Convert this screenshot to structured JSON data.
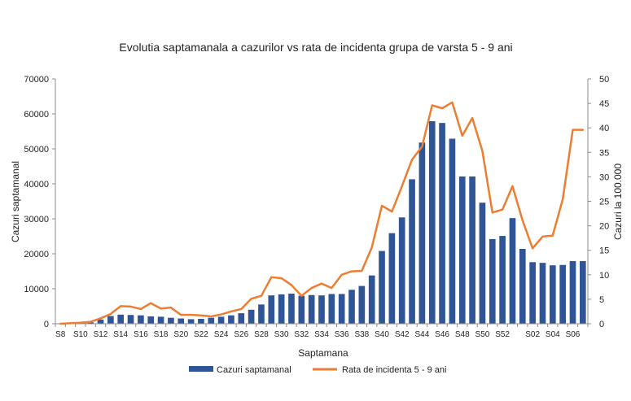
{
  "chart_data": {
    "type": "bar+line",
    "title": "Evolutia saptamanala a cazurilor vs rata de incidenta grupa de varsta 5 - 9 ani",
    "xlabel": "Saptamana",
    "ylabel_left": "Cazuri saptamanal",
    "ylabel_right": "Cazuri la 100.000",
    "ylim_left": [
      0,
      70000
    ],
    "ylim_right": [
      0,
      50
    ],
    "yticks_left": [
      "0",
      "10000",
      "20000",
      "30000",
      "40000",
      "50000",
      "60000",
      "70000"
    ],
    "yticks_right": [
      "0",
      "5",
      "10",
      "15",
      "20",
      "25",
      "30",
      "35",
      "40",
      "45",
      "50"
    ],
    "categories": [
      "S8",
      "S9",
      "S10",
      "S11",
      "S12",
      "S13",
      "S14",
      "S15",
      "S16",
      "S17",
      "S18",
      "S19",
      "S20",
      "S21",
      "S22",
      "S23",
      "S24",
      "S25",
      "S26",
      "S27",
      "S28",
      "S29",
      "S30",
      "S31",
      "S32",
      "S33",
      "S34",
      "S35",
      "S36",
      "S37",
      "S38",
      "S39",
      "S40",
      "S41",
      "S42",
      "S43",
      "S44",
      "S45",
      "S46",
      "S47",
      "S48",
      "S49",
      "S50",
      "S51",
      "S52",
      "S53",
      "S01",
      "S02",
      "S03",
      "S04",
      "S05",
      "S06",
      "S07"
    ],
    "x_tick_labels": [
      "S8",
      "S10",
      "S12",
      "S14",
      "S16",
      "S18",
      "S20",
      "S22",
      "S24",
      "S26",
      "S28",
      "S30",
      "S32",
      "S34",
      "S36",
      "S38",
      "S40",
      "S42",
      "S44",
      "S46",
      "S48",
      "S50",
      "S52",
      "S02",
      "S04",
      "S06"
    ],
    "series": [
      {
        "name": "Cazuri saptamanal",
        "type": "bar",
        "axis": "left",
        "color": "#2F5597",
        "values": [
          50,
          100,
          200,
          400,
          1200,
          2200,
          2600,
          2500,
          2400,
          2100,
          2000,
          1700,
          1500,
          1300,
          1400,
          1700,
          2000,
          2400,
          3000,
          4000,
          5500,
          8100,
          8400,
          8600,
          8000,
          8200,
          8100,
          8500,
          8500,
          9700,
          10800,
          13800,
          20800,
          25900,
          30400,
          41300,
          51800,
          57900,
          57400,
          52900,
          42100,
          42100,
          34600,
          24200,
          25100,
          30200,
          21400,
          17600,
          17400,
          16700,
          16800,
          17900,
          17900
        ]
      },
      {
        "name": "Rata de incidenta 5 - 9 ani",
        "type": "line",
        "axis": "right",
        "color": "#ED7D31",
        "values": [
          0.0,
          0.1,
          0.2,
          0.4,
          1.1,
          2.0,
          3.6,
          3.5,
          3.0,
          4.2,
          3.1,
          3.3,
          1.8,
          1.8,
          1.7,
          1.5,
          1.9,
          2.5,
          3.0,
          5.1,
          5.7,
          9.5,
          9.3,
          7.9,
          5.7,
          7.3,
          8.2,
          7.3,
          10.0,
          10.7,
          10.8,
          15.6,
          24.1,
          22.9,
          28.1,
          33.5,
          36.2,
          44.6,
          44.0,
          45.2,
          38.4,
          42.0,
          35.3,
          22.7,
          23.3,
          28.1,
          21.1,
          15.4,
          17.8,
          18.0,
          25.4,
          39.6,
          39.6
        ]
      }
    ],
    "legend_position": "bottom",
    "grid": false
  }
}
